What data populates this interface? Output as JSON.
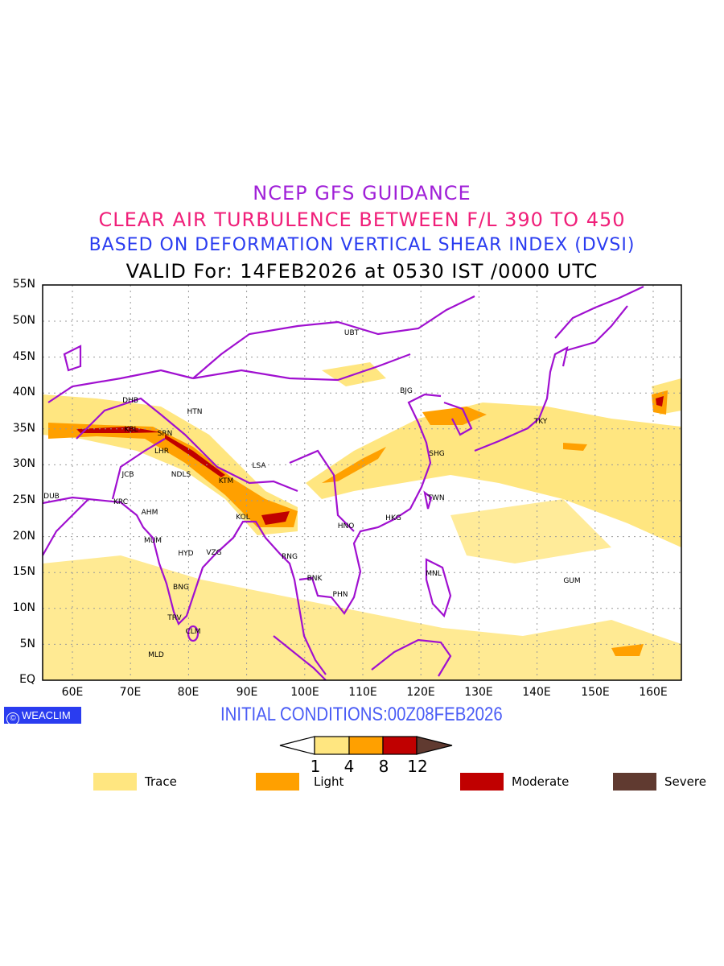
{
  "titles": {
    "line1": "NCEP GFS GUIDANCE",
    "line2": "CLEAR AIR TURBULENCE BETWEEN F/L 390 TO 450",
    "line3": "BASED ON DEFORMATION VERTICAL SHEAR INDEX (DVSI)",
    "line4": "VALID For: 14FEB2026 at 0530 IST /0000 UTC"
  },
  "axes": {
    "lat_labels": [
      "55N",
      "50N",
      "45N",
      "40N",
      "35N",
      "30N",
      "25N",
      "20N",
      "15N",
      "10N",
      "5N",
      "EQ"
    ],
    "lon_labels": [
      "60E",
      "70E",
      "80E",
      "90E",
      "100E",
      "110E",
      "120E",
      "130E",
      "140E",
      "150E",
      "160E"
    ]
  },
  "cities": [
    "UBT",
    "BJG",
    "DHB",
    "HTN",
    "KBL",
    "SRN",
    "TKY",
    "LHR",
    "SHG",
    "LSA",
    "JCB",
    "NDLS",
    "KTM",
    "DUB",
    "KRC",
    "TWN",
    "AHM",
    "KOL",
    "HKG",
    "HNO",
    "MUM",
    "HYD",
    "VZG",
    "RNG",
    "MNL",
    "GUM",
    "BNK",
    "PHN",
    "BNG",
    "TRV",
    "CLM",
    "MLD"
  ],
  "logo": {
    "symbol": "©",
    "text": "WEACLIM"
  },
  "initial_conditions": "INITIAL CONDITIONS:00Z08FEB2026",
  "colorbar": {
    "ticks": [
      "1",
      "4",
      "8",
      "12"
    ],
    "colors": [
      "#ffe680",
      "#ffa000",
      "#c00000",
      "#603a30"
    ]
  },
  "legend": [
    {
      "label": "Trace",
      "color": "#ffe680"
    },
    {
      "label": "Light",
      "color": "#ffa000"
    },
    {
      "label": "Moderate",
      "color": "#c00000"
    },
    {
      "label": "Severe",
      "color": "#603a30"
    }
  ],
  "colors": {
    "coast": "#a010d0",
    "trace": "#ffe680",
    "light": "#ffa000",
    "moderate": "#c00000"
  }
}
